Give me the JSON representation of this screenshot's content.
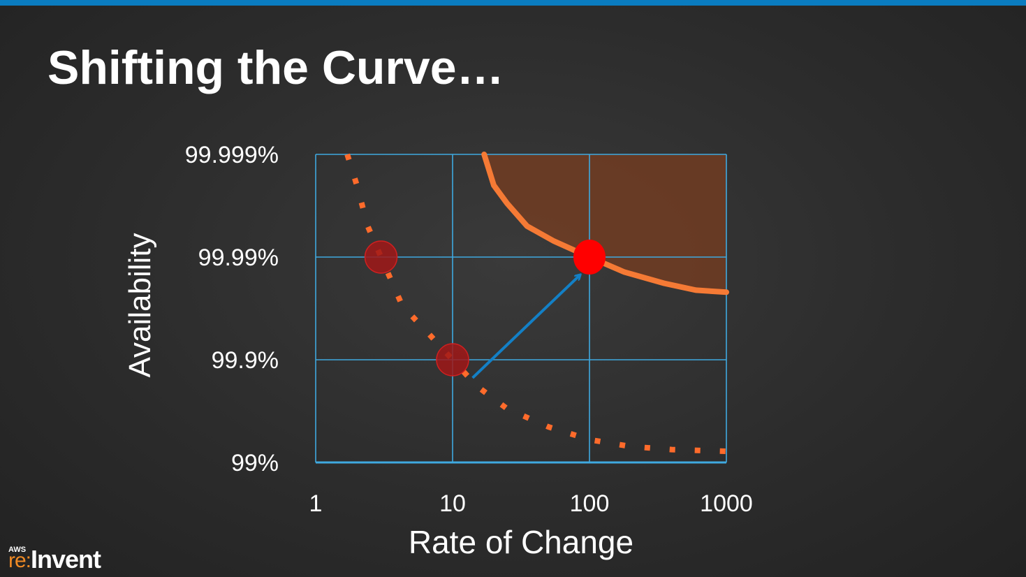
{
  "slide": {
    "title": "Shifting the Curve…",
    "accent_color": "#0a7cc0"
  },
  "logo": {
    "aws": "AWS",
    "re": "re:",
    "invent": "Invent"
  },
  "chart_data": {
    "type": "line",
    "xlabel": "Rate of Change",
    "ylabel": "Availability",
    "x_scale": "log",
    "y_scale": "log-unavailability",
    "xlim": [
      1,
      1000
    ],
    "ylim": [
      99,
      99.999
    ],
    "x_ticks": [
      {
        "value": 1,
        "label": "1"
      },
      {
        "value": 10,
        "label": "10"
      },
      {
        "value": 100,
        "label": "100"
      },
      {
        "value": 1000,
        "label": "1000"
      }
    ],
    "y_ticks": [
      {
        "value": 99,
        "label": "99%"
      },
      {
        "value": 99.9,
        "label": "99.9%"
      },
      {
        "value": 99.99,
        "label": "99.99%"
      },
      {
        "value": 99.999,
        "label": "99.999%"
      }
    ],
    "grid": true,
    "series": [
      {
        "style": "dotted",
        "color": "#ff6b2b",
        "points": [
          [
            1.7,
            99.999
          ],
          [
            2.0,
            99.998
          ],
          [
            2.4,
            99.995
          ],
          [
            3.0,
            99.99
          ],
          [
            4.3,
            99.97
          ],
          [
            6.2,
            99.95
          ],
          [
            10,
            99.9
          ],
          [
            15,
            99.82
          ],
          [
            25,
            99.7
          ],
          [
            50,
            99.55
          ],
          [
            100,
            99.4
          ],
          [
            200,
            99.3
          ],
          [
            400,
            99.25
          ],
          [
            1000,
            99.22
          ]
        ]
      },
      {
        "style": "solid",
        "color": "#f57a35",
        "fill": "#7a3d20",
        "points": [
          [
            17,
            99.999
          ],
          [
            20,
            99.998
          ],
          [
            25,
            99.997
          ],
          [
            35,
            99.995
          ],
          [
            55,
            99.993
          ],
          [
            100,
            99.99
          ],
          [
            180,
            99.986
          ],
          [
            350,
            99.982
          ],
          [
            600,
            99.979
          ],
          [
            1000,
            99.978
          ]
        ]
      }
    ],
    "markers": [
      {
        "x": 3,
        "y": 99.99,
        "color": "#a01818",
        "style": "faded"
      },
      {
        "x": 10,
        "y": 99.9,
        "color": "#a01818",
        "style": "faded"
      },
      {
        "x": 100,
        "y": 99.99,
        "color": "#ff0000",
        "style": "solid"
      }
    ],
    "arrow": {
      "from": [
        14,
        99.85
      ],
      "to": [
        85,
        99.985
      ],
      "color": "#1380c6"
    }
  }
}
